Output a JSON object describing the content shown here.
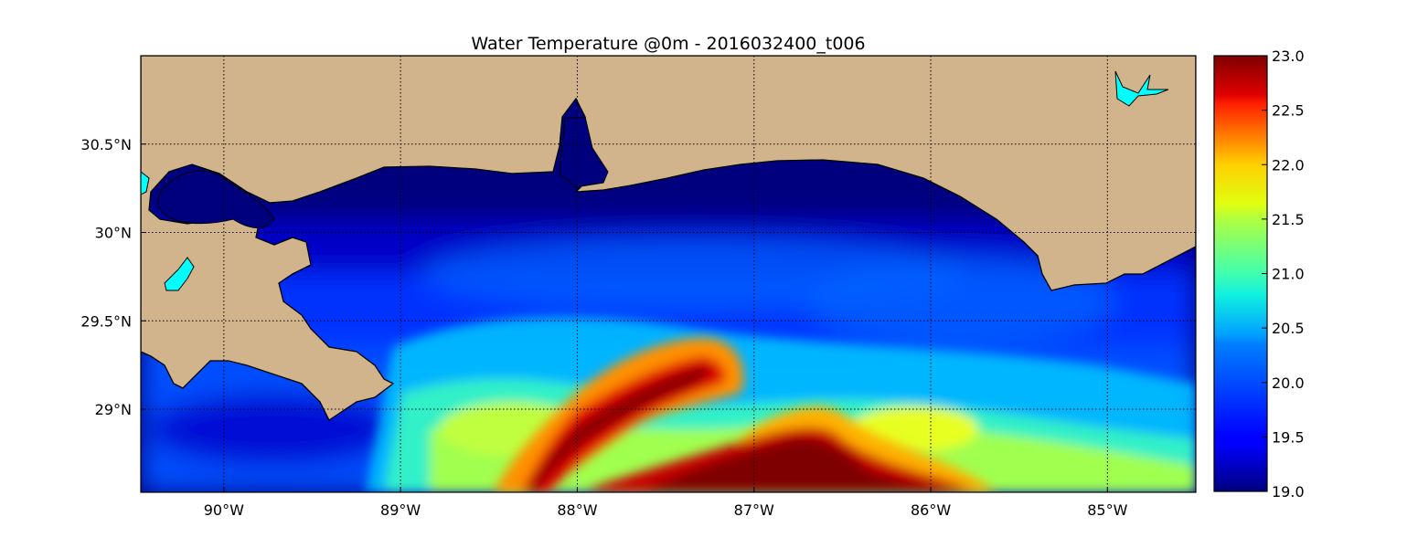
{
  "chart_data": {
    "type": "heatmap",
    "title": "Water Temperature @0m - 2016032400_t006",
    "xlabel": "",
    "ylabel": "",
    "x_range": [
      -90.47,
      -84.5
    ],
    "y_range": [
      28.53,
      31.0
    ],
    "x_ticks": [
      {
        "value": -90,
        "label": "90°W"
      },
      {
        "value": -89,
        "label": "89°W"
      },
      {
        "value": -88,
        "label": "88°W"
      },
      {
        "value": -87,
        "label": "87°W"
      },
      {
        "value": -86,
        "label": "86°W"
      },
      {
        "value": -85,
        "label": "85°W"
      }
    ],
    "y_ticks": [
      {
        "value": 29,
        "label": "29°N"
      },
      {
        "value": 29.5,
        "label": "29.5°N"
      },
      {
        "value": 30,
        "label": "30°N"
      },
      {
        "value": 30.5,
        "label": "30.5°N"
      }
    ],
    "grid": true,
    "colormap": "jet",
    "colorbar": {
      "range": [
        19.0,
        23.0
      ],
      "ticks": [
        "19.0",
        "19.5",
        "20.0",
        "20.5",
        "21.0",
        "21.5",
        "22.0",
        "22.5",
        "23.0"
      ]
    },
    "land_color": "#d2b48c",
    "inland_water_color": "#00ffff",
    "features": [
      {
        "name": "warm loop current core",
        "value_range": [
          22.5,
          23.0
        ],
        "extent": "south-central, 88.5°W–85.7°W, below 29.1°N"
      },
      {
        "name": "warm filament",
        "value_range": [
          21.5,
          23.0
        ],
        "extent": "87.8°W–87.0°W, 29.0°N–29.4°N"
      },
      {
        "name": "cool nearshore shelf water",
        "value_range": [
          19.0,
          19.5
        ],
        "extent": "along northern coast"
      },
      {
        "name": "mid-shelf transition",
        "value_range": [
          19.5,
          21.0
        ],
        "extent": "29.3°N–29.9°N"
      }
    ]
  }
}
